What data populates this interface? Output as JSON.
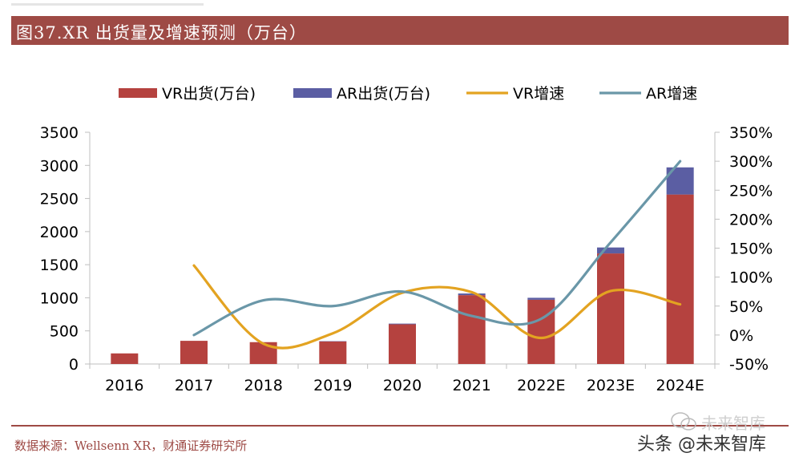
{
  "title": "图37.XR 出货量及增速预测（万台）",
  "source": "数据来源：Wellsenn XR，财通证券研究所",
  "watermark": "头条 @未来智库",
  "watermark_faint": "未来智库",
  "colors": {
    "vr_bar": "#b5423f",
    "ar_bar": "#5b5ea3",
    "vr_line": "#e3a321",
    "ar_line": "#6a97a8",
    "title_bg": "#9e4a45"
  },
  "chart_data": {
    "type": "bar",
    "categories": [
      "2016",
      "2017",
      "2018",
      "2019",
      "2020",
      "2021",
      "2022E",
      "2023E",
      "2024E"
    ],
    "series": [
      {
        "name": "VR出货(万台)",
        "kind": "bar",
        "axis": "left",
        "values": [
          160,
          350,
          330,
          340,
          600,
          1040,
          970,
          1670,
          2560
        ]
      },
      {
        "name": "AR出货(万台)",
        "kind": "bar",
        "axis": "left",
        "values": [
          0,
          0,
          0,
          5,
          10,
          25,
          30,
          90,
          410
        ]
      },
      {
        "name": "VR增速",
        "kind": "line",
        "axis": "right",
        "values": [
          null,
          120,
          -15,
          3,
          73,
          74,
          -5,
          76,
          53
        ]
      },
      {
        "name": "AR增速",
        "kind": "line",
        "axis": "right",
        "values": [
          null,
          0,
          60,
          50,
          75,
          33,
          28,
          160,
          300
        ]
      }
    ],
    "y_left": {
      "ticks": [
        "0",
        "500",
        "1000",
        "1500",
        "2000",
        "2500",
        "3000",
        "3500"
      ],
      "range": [
        0,
        3500
      ]
    },
    "y_right": {
      "ticks": [
        "-50%",
        "0%",
        "50%",
        "100%",
        "150%",
        "200%",
        "250%",
        "300%",
        "350%"
      ],
      "range": [
        -50,
        350
      ]
    },
    "legend": [
      "VR出货(万台)",
      "AR出货(万台)",
      "VR增速",
      "AR增速"
    ],
    "legend_position": "top"
  }
}
